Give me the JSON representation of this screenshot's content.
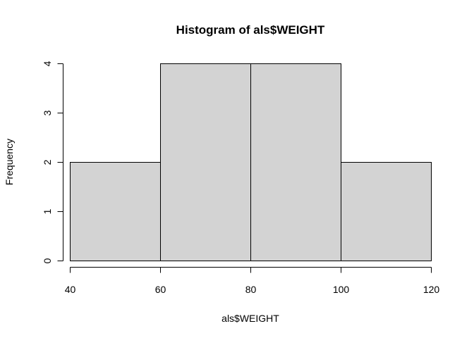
{
  "chart_data": {
    "type": "bar",
    "title": "Histogram of als$WEIGHT",
    "xlabel": "als$WEIGHT",
    "ylabel": "Frequency",
    "bins": [
      {
        "start": 40,
        "end": 60,
        "count": 2
      },
      {
        "start": 60,
        "end": 80,
        "count": 4
      },
      {
        "start": 80,
        "end": 100,
        "count": 4
      },
      {
        "start": 100,
        "end": 120,
        "count": 2
      }
    ],
    "xlim": [
      40,
      120
    ],
    "ylim": [
      0,
      4
    ],
    "x_ticks": [
      40,
      60,
      80,
      100,
      120
    ],
    "y_ticks": [
      0,
      1,
      2,
      3,
      4
    ],
    "bar_fill": "#d3d3d3",
    "bar_stroke": "#000000",
    "grid": false
  }
}
